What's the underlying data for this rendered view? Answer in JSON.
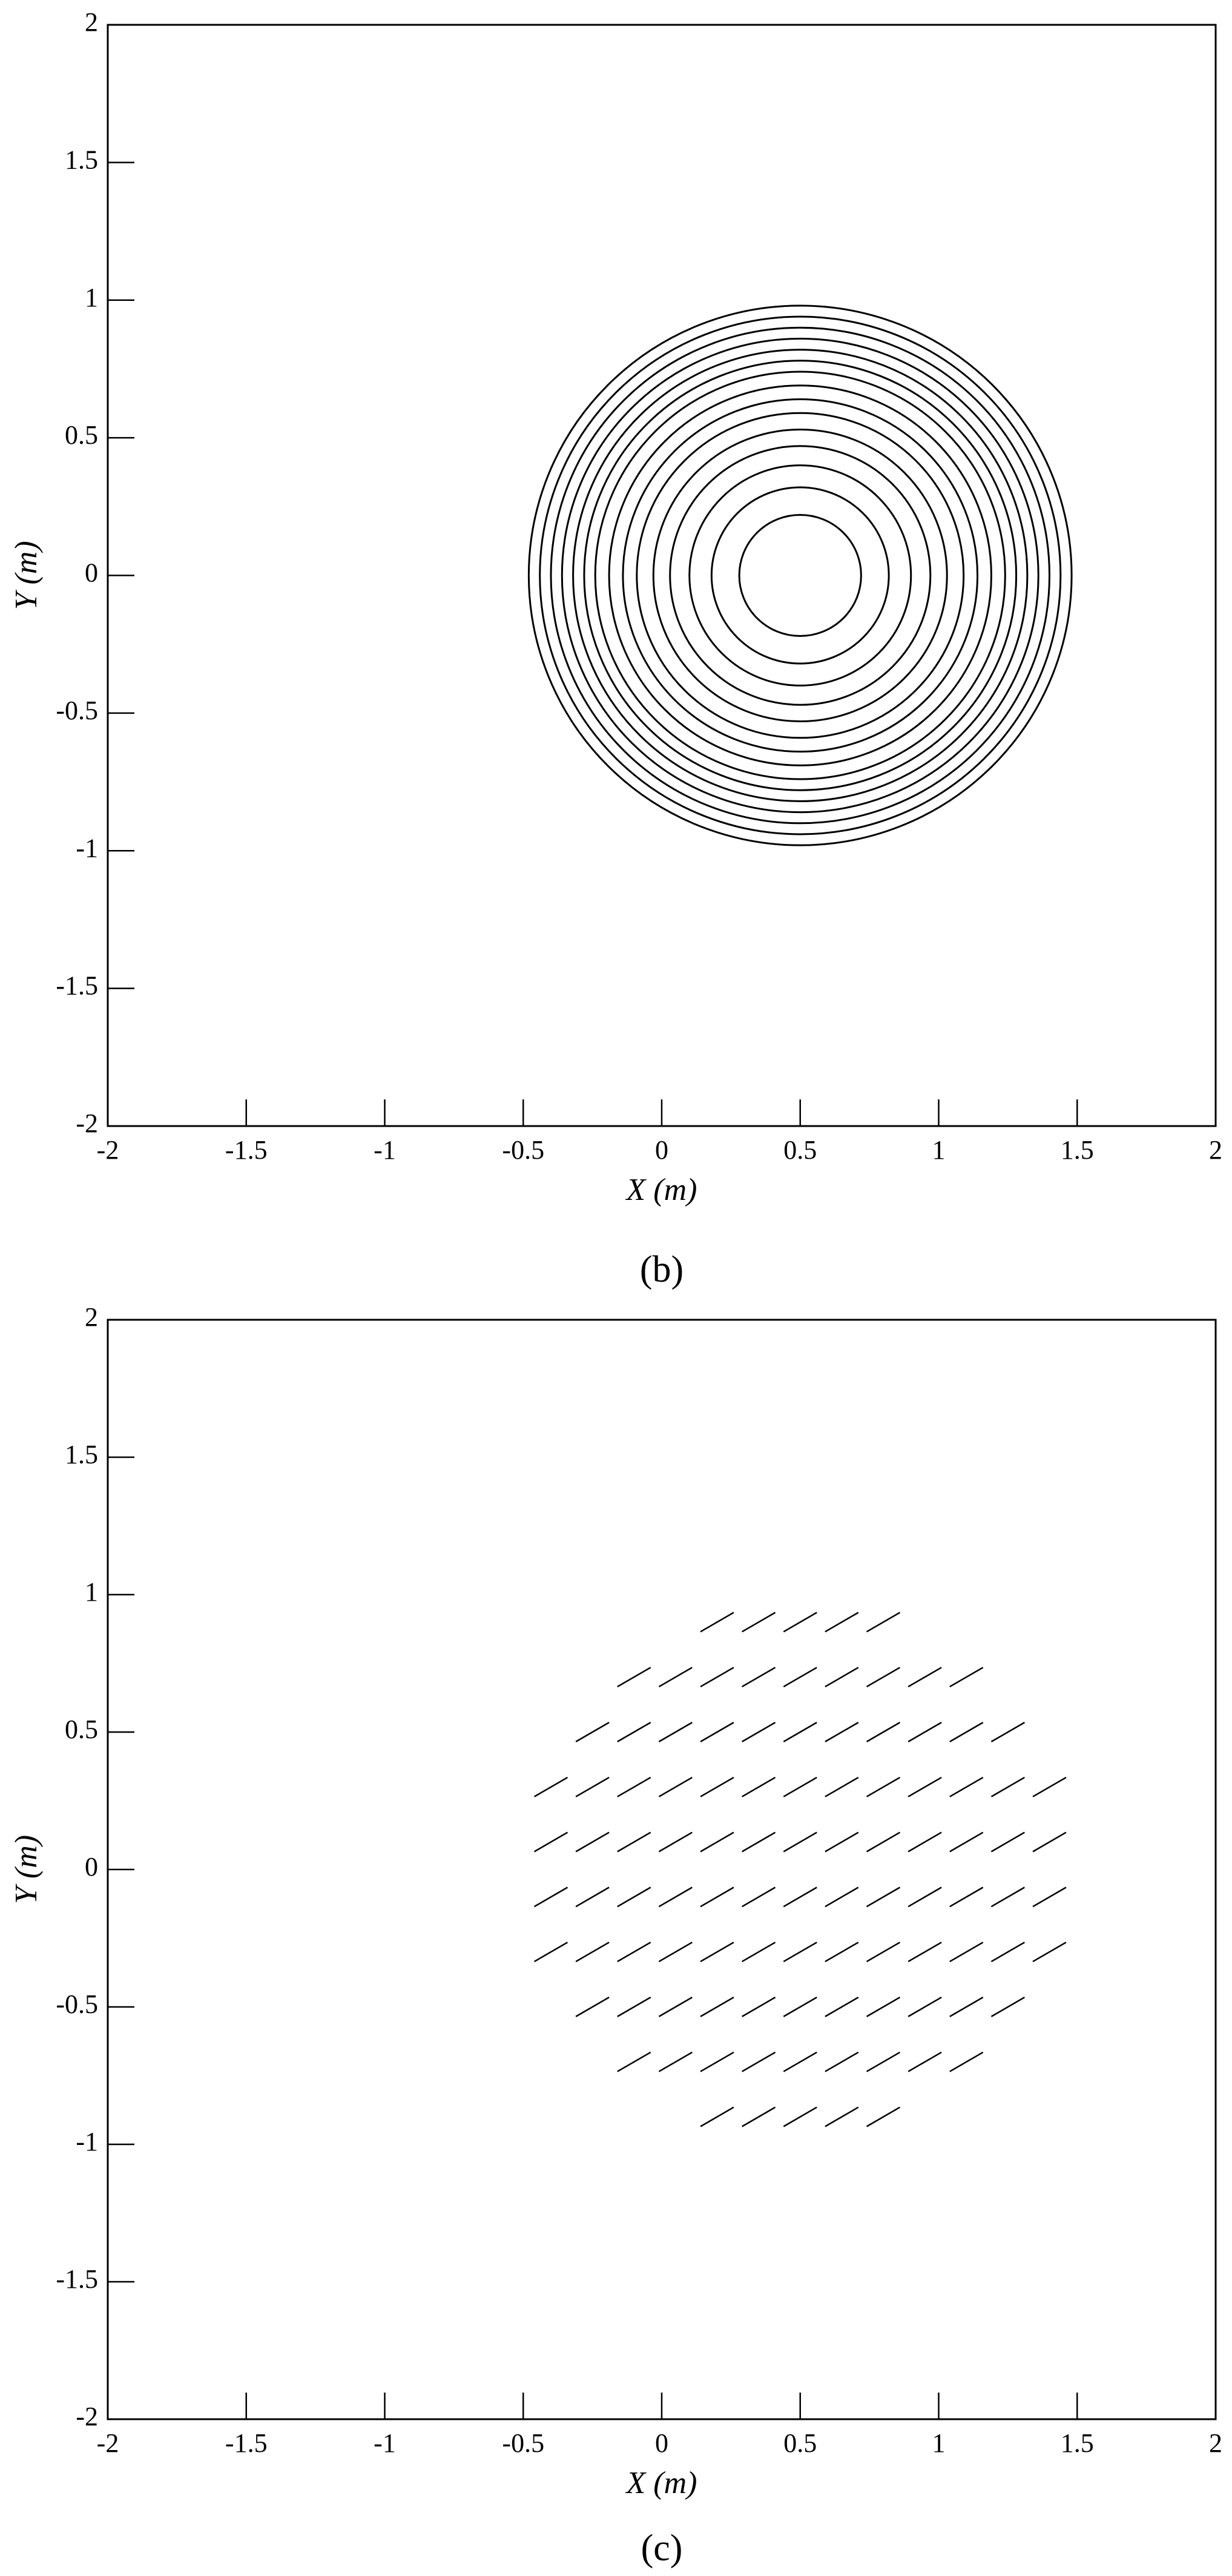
{
  "chart_data": [
    {
      "type": "circles",
      "xlabel": "X (m)",
      "ylabel": "Y (m)",
      "caption": "(b)",
      "center": [
        0.5,
        0
      ],
      "radii": [
        0.22,
        0.32,
        0.4,
        0.47,
        0.53,
        0.59,
        0.64,
        0.69,
        0.74,
        0.78,
        0.82,
        0.86,
        0.9,
        0.94,
        0.98
      ],
      "color": "#000000",
      "xlim": [
        -2,
        2
      ],
      "ylim": [
        -2,
        2
      ],
      "xticks": [
        -2,
        -1.5,
        -1,
        -0.5,
        0,
        0.5,
        1,
        1.5,
        2
      ],
      "yticks": [
        -2,
        -1.5,
        -1,
        -0.5,
        0,
        0.5,
        1,
        1.5,
        2
      ]
    },
    {
      "type": "segments",
      "xlabel": "X (m)",
      "ylabel": "Y (m)",
      "caption": "(c)",
      "vector": [
        0.12,
        0.07
      ],
      "color": "#000000",
      "rows": [
        {
          "y": 0.9,
          "x": [
            0.2,
            0.35,
            0.5,
            0.65,
            0.8
          ]
        },
        {
          "y": 0.7,
          "x": [
            -0.1,
            0.05,
            0.2,
            0.35,
            0.5,
            0.65,
            0.8,
            0.95,
            1.1
          ]
        },
        {
          "y": 0.5,
          "x": [
            -0.25,
            -0.1,
            0.05,
            0.2,
            0.35,
            0.5,
            0.65,
            0.8,
            0.95,
            1.1,
            1.25
          ]
        },
        {
          "y": 0.3,
          "x": [
            -0.4,
            -0.25,
            -0.1,
            0.05,
            0.2,
            0.35,
            0.5,
            0.65,
            0.8,
            0.95,
            1.1,
            1.25,
            1.4
          ]
        },
        {
          "y": 0.1,
          "x": [
            -0.4,
            -0.25,
            -0.1,
            0.05,
            0.2,
            0.35,
            0.5,
            0.65,
            0.8,
            0.95,
            1.1,
            1.25,
            1.4
          ]
        },
        {
          "y": -0.1,
          "x": [
            -0.4,
            -0.25,
            -0.1,
            0.05,
            0.2,
            0.35,
            0.5,
            0.65,
            0.8,
            0.95,
            1.1,
            1.25,
            1.4
          ]
        },
        {
          "y": -0.3,
          "x": [
            -0.4,
            -0.25,
            -0.1,
            0.05,
            0.2,
            0.35,
            0.5,
            0.65,
            0.8,
            0.95,
            1.1,
            1.25,
            1.4
          ]
        },
        {
          "y": -0.5,
          "x": [
            -0.25,
            -0.1,
            0.05,
            0.2,
            0.35,
            0.5,
            0.65,
            0.8,
            0.95,
            1.1,
            1.25
          ]
        },
        {
          "y": -0.7,
          "x": [
            -0.1,
            0.05,
            0.2,
            0.35,
            0.5,
            0.65,
            0.8,
            0.95,
            1.1
          ]
        },
        {
          "y": -0.9,
          "x": [
            0.2,
            0.35,
            0.5,
            0.65,
            0.8
          ]
        }
      ],
      "xlim": [
        -2,
        2
      ],
      "ylim": [
        -2,
        2
      ],
      "xticks": [
        -2,
        -1.5,
        -1,
        -0.5,
        0,
        0.5,
        1,
        1.5,
        2
      ],
      "yticks": [
        -2,
        -1.5,
        -1,
        -0.5,
        0,
        0.5,
        1,
        1.5,
        2
      ]
    }
  ]
}
